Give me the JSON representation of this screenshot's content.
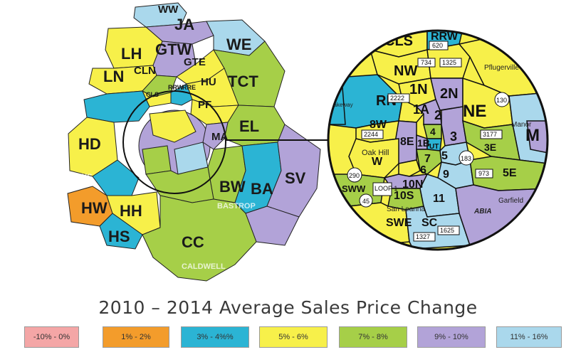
{
  "title": "2010 – 2014 Average Sales Price Change",
  "legend": [
    {
      "label": "-10% - 0%",
      "color": "#f4a6a6"
    },
    {
      "label": "1% - 2%",
      "color": "#f39c2b"
    },
    {
      "label": "3% - 4%%",
      "color": "#2bb4d4"
    },
    {
      "label": "5% - 6%",
      "color": "#f7f04a"
    },
    {
      "label": "7% - 8%",
      "color": "#a6cf48"
    },
    {
      "label": "9% - 10%",
      "color": "#b2a3d8"
    },
    {
      "label": "11% - 16%",
      "color": "#aad8ec"
    }
  ],
  "areas": {
    "ww": "WW",
    "ja": "JA",
    "lh": "LH",
    "gtw": "GTW",
    "we": "WE",
    "ln": "LN",
    "cln": "CLN",
    "gte": "GTE",
    "tct": "TCT",
    "hu": "HU",
    "cls": "CLS",
    "rrw": "RRW",
    "rre": "RRE",
    "pf": "PF",
    "el": "EL",
    "hd": "HD",
    "ma": "MA",
    "bw": "BW",
    "sv": "SV",
    "ba": "BA",
    "hw": "HW",
    "hh": "HH",
    "hs": "HS",
    "cc": "CC"
  },
  "counties": {
    "hays": "HAYS",
    "bastrop": "BASTROP",
    "caldwell": "CALDWELL"
  },
  "inset": {
    "areas": [
      "CLS",
      "RRW",
      "NW",
      "1N",
      "2N",
      "1A",
      "NE",
      "RN",
      "2",
      "8W",
      "8E",
      "4",
      "1B",
      "UT",
      "3",
      "3E",
      "W",
      "5",
      "7",
      "6",
      "9",
      "5E",
      "10N",
      "SWW",
      "10S",
      "11",
      "SWE",
      "SC",
      "M"
    ],
    "places": [
      "Pflugerville",
      "Oak Hill",
      "San Leanna",
      "Manor",
      "Garfield",
      "ABIA",
      "Lakeway"
    ],
    "roads": [
      "620",
      "734",
      "1325",
      "2222",
      "3177",
      "2244",
      "973",
      "1327",
      "1625",
      "130",
      "183",
      "290",
      "45",
      "LOOP 1"
    ]
  }
}
